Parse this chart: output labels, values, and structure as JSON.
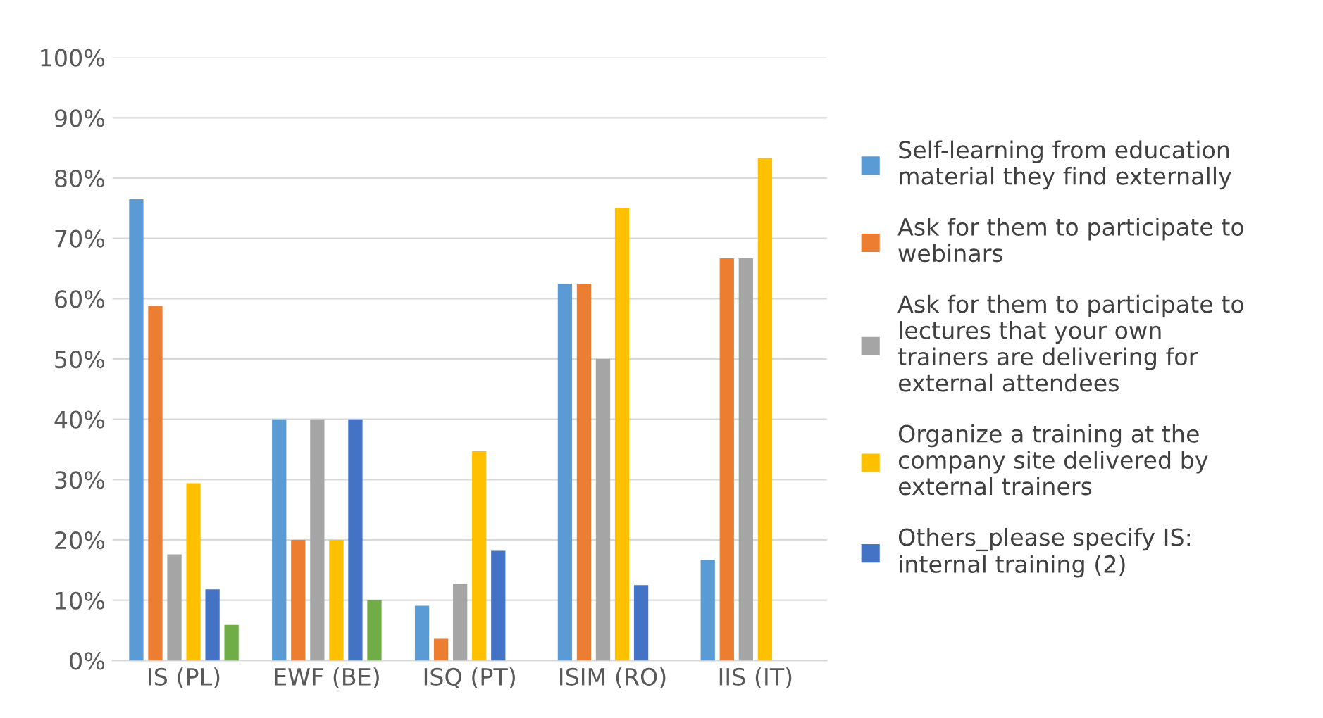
{
  "chart_data": {
    "type": "bar",
    "categories": [
      "IS (PL)",
      "EWF (BE)",
      "ISQ (PT)",
      "ISIM (RO)",
      "IIS (IT)"
    ],
    "series": [
      {
        "name": "Self-learning from education material they find externally",
        "color": "#5b9bd5",
        "values": [
          76.5,
          40,
          9.1,
          62.5,
          16.7
        ]
      },
      {
        "name": "Ask for them to participate to webinars",
        "color": "#ed7d31",
        "values": [
          58.8,
          20,
          3.6,
          62.5,
          66.7
        ]
      },
      {
        "name": "Ask for them to participate to lectures that your own trainers are delivering for external attendees",
        "color": "#a5a5a5",
        "values": [
          17.6,
          40,
          12.7,
          50,
          66.7
        ]
      },
      {
        "name": "Organize a training at the company site delivered by external trainers",
        "color": "#ffc000",
        "values": [
          29.4,
          20,
          34.7,
          75,
          83.3
        ]
      },
      {
        "name": "Others_please specify IS: internal training (2)",
        "color": "#4472c4",
        "values": [
          11.8,
          40,
          18.2,
          12.5,
          null
        ]
      },
      {
        "color": "#70ad47",
        "values": [
          5.9,
          10,
          null,
          null,
          null
        ]
      }
    ],
    "ylim": [
      0,
      100
    ],
    "yticks": [
      {
        "value": 0,
        "label": "0%"
      },
      {
        "value": 10,
        "label": "10%"
      },
      {
        "value": 20,
        "label": "20%"
      },
      {
        "value": 30,
        "label": "30%"
      },
      {
        "value": 40,
        "label": "40%"
      },
      {
        "value": 50,
        "label": "50%"
      },
      {
        "value": 60,
        "label": "60%"
      },
      {
        "value": 70,
        "label": "70%"
      },
      {
        "value": 80,
        "label": "80%"
      },
      {
        "value": 90,
        "label": "90%"
      },
      {
        "value": 100,
        "label": "100%"
      }
    ],
    "grid": "y",
    "legend": "right"
  }
}
